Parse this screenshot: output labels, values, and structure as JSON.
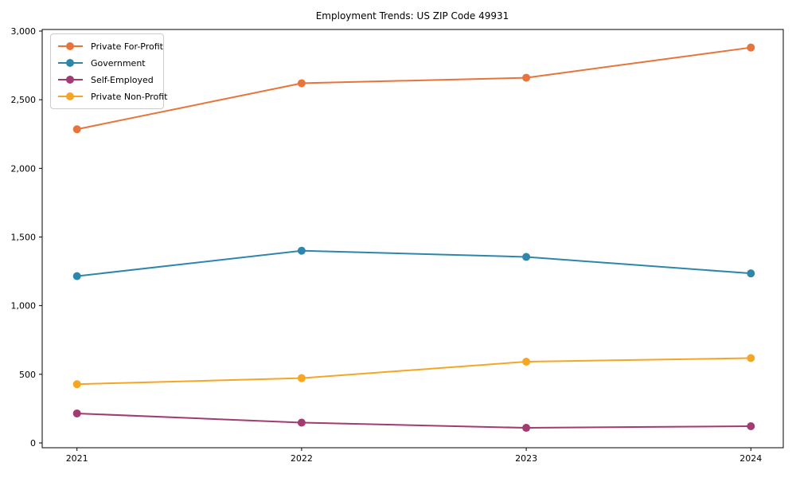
{
  "figure": {
    "background": "#ffffff",
    "border_color": "#000000",
    "legend_border_color": "#cccccc"
  },
  "chart_data": {
    "type": "line",
    "title": "Employment Trends: US ZIP Code 49931",
    "xlabel": "",
    "ylabel": "",
    "grid": false,
    "legend_position": "upper-left",
    "marker": "circle",
    "x": [
      2021,
      2022,
      2023,
      2024
    ],
    "x_tick_labels": [
      "2021",
      "2022",
      "2023",
      "2024"
    ],
    "ylim": [
      0,
      3000
    ],
    "y_ticks": [
      0,
      500,
      1000,
      1500,
      2000,
      2500,
      3000
    ],
    "y_tick_labels": [
      "0",
      "500",
      "1,000",
      "1,500",
      "2,000",
      "2,500",
      "3,000"
    ],
    "series": [
      {
        "name": "Private For-Profit",
        "color": "#E8743B",
        "values": [
          2285,
          2620,
          2660,
          2880
        ]
      },
      {
        "name": "Government",
        "color": "#2E86AB",
        "values": [
          1215,
          1400,
          1355,
          1235
        ]
      },
      {
        "name": "Self-Employed",
        "color": "#A23B72",
        "values": [
          215,
          148,
          110,
          122
        ]
      },
      {
        "name": "Private Non-Profit",
        "color": "#F5A623",
        "values": [
          428,
          472,
          592,
          618
        ]
      }
    ]
  }
}
